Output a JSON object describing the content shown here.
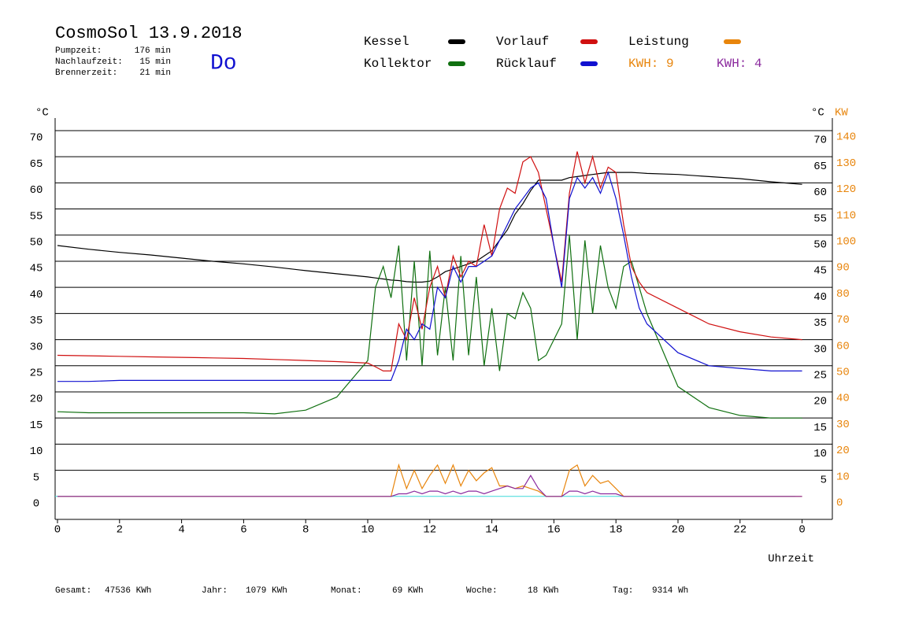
{
  "chart_data": {
    "type": "line",
    "title": "CosmoSol 13.9.2018",
    "info": [
      {
        "label": "Pumpzeit:",
        "value": "176 min"
      },
      {
        "label": "Nachlaufzeit:",
        "value": "15 min"
      },
      {
        "label": "Brennerzeit:",
        "value": "21 min"
      }
    ],
    "weekday": "Do",
    "kwh_labels": [
      {
        "text": "KWH: 9",
        "color": "#e8850c"
      },
      {
        "text": "KWH: 4",
        "color": "#8b2a9e"
      }
    ],
    "y_label": "°C",
    "y_label_right": "°C",
    "y2_label": "KW",
    "x_label": "Uhrzeit",
    "footer": [
      {
        "label": "Gesamt:",
        "value": "47536 KWh"
      },
      {
        "label": "Jahr:",
        "value": "1079 KWh"
      },
      {
        "label": "Monat:",
        "value": "69 KWh"
      },
      {
        "label": "Woche:",
        "value": "18 KWh"
      },
      {
        "label": "Tag:",
        "value": "9314 Wh"
      }
    ],
    "xlim": [
      0,
      25
    ],
    "xticks": [
      0,
      2,
      4,
      6,
      8,
      10,
      12,
      14,
      16,
      18,
      20,
      22,
      {
        "value": 24,
        "label": "0"
      }
    ],
    "ylim": [
      -4.4,
      72.4
    ],
    "yticks": [
      0,
      5,
      10,
      15,
      20,
      25,
      30,
      35,
      40,
      45,
      50,
      55,
      60,
      65,
      70
    ],
    "yticks_right": [
      5,
      10,
      15,
      20,
      25,
      30,
      35,
      40,
      45,
      50,
      55,
      60,
      65,
      70
    ],
    "y2lim": [
      -8.8,
      144.8
    ],
    "y2ticks": [
      0,
      10,
      20,
      30,
      40,
      50,
      60,
      70,
      80,
      90,
      100,
      110,
      120,
      130,
      140
    ],
    "y2_color": "#e8850c",
    "grid": true,
    "zero_line_color": "#3cd8d8",
    "x": [
      0,
      1,
      2,
      3,
      4,
      5,
      6,
      7,
      8,
      9,
      10,
      10.25,
      10.5,
      10.75,
      11,
      11.25,
      11.5,
      11.75,
      12,
      12.25,
      12.5,
      12.75,
      13,
      13.25,
      13.5,
      13.75,
      14,
      14.25,
      14.5,
      14.75,
      15,
      15.25,
      15.5,
      15.75,
      16,
      16.25,
      16.5,
      16.75,
      17,
      17.25,
      17.5,
      17.75,
      18,
      18.25,
      18.5,
      18.75,
      19,
      20,
      21,
      22,
      23,
      24
    ],
    "series": [
      {
        "name": "Kessel",
        "color": "#000000",
        "values": [
          48,
          47.3,
          46.7,
          46.2,
          45.6,
          45,
          44.5,
          43.9,
          43.2,
          42.6,
          42,
          41.8,
          41.6,
          41.4,
          41.3,
          41.1,
          41,
          41,
          41.2,
          42,
          43,
          43.5,
          44,
          44.5,
          45,
          46,
          47,
          49,
          51,
          54,
          56,
          58.5,
          60.5,
          60.5,
          60.5,
          60.5,
          61,
          61.2,
          61.4,
          61.6,
          61.8,
          62,
          62,
          62,
          62,
          61.9,
          61.8,
          61.6,
          61.2,
          60.8,
          60.2,
          59.7
        ]
      },
      {
        "name": "Kollektor",
        "color": "#107010",
        "values": [
          16.2,
          16,
          16,
          16,
          16,
          16,
          16,
          15.8,
          16.5,
          19,
          26,
          40,
          44,
          38,
          48,
          26,
          45,
          25,
          47,
          27,
          40,
          26,
          46,
          27,
          42,
          25,
          36,
          24,
          35,
          34,
          39,
          36,
          26,
          27,
          30,
          33,
          50,
          30,
          49,
          35,
          48,
          40,
          36,
          44,
          45,
          40,
          35,
          21,
          17,
          15.5,
          15,
          15
        ]
      },
      {
        "name": "Vorlauf",
        "color": "#d01010",
        "values": [
          27,
          26.9,
          26.8,
          26.7,
          26.6,
          26.5,
          26.4,
          26.2,
          26,
          25.8,
          25.5,
          24.8,
          24,
          24,
          33,
          30,
          38,
          32,
          40,
          44,
          38,
          46,
          42,
          45,
          44,
          52,
          46,
          55,
          59,
          58,
          64,
          65,
          62,
          55,
          48,
          41,
          58,
          66,
          60,
          65,
          59,
          63,
          62,
          52,
          44,
          41,
          39,
          36,
          33,
          31.5,
          30.5,
          30
        ]
      },
      {
        "name": "Rücklauf",
        "color": "#1010d0",
        "values": [
          22,
          22,
          22.2,
          22.2,
          22.2,
          22.2,
          22.2,
          22.2,
          22.2,
          22.2,
          22.2,
          22.2,
          22.2,
          22.2,
          26,
          32,
          30,
          33,
          32,
          40,
          38,
          44,
          41,
          44,
          44,
          45,
          46,
          49,
          52,
          55,
          57,
          59,
          60,
          57,
          48,
          40,
          57,
          61,
          59,
          61,
          58,
          62,
          57,
          50,
          42,
          36,
          33,
          27.5,
          25,
          24.5,
          24,
          24
        ]
      },
      {
        "name": "Leistung",
        "color": "#e8850c",
        "axis": "y2",
        "values": [
          0,
          0,
          0,
          0,
          0,
          0,
          0,
          0,
          0,
          0,
          0,
          0,
          0,
          0,
          12,
          3,
          10,
          3,
          8,
          12,
          5,
          12,
          4,
          10,
          6,
          9,
          11,
          4,
          4,
          3,
          4,
          3,
          2,
          0,
          0,
          0,
          10,
          12,
          4,
          8,
          5,
          6,
          3,
          0,
          0,
          0,
          0,
          0,
          0,
          0,
          0,
          0
        ]
      },
      {
        "color": "#8b2a9e",
        "axis": "y2",
        "values": [
          0,
          0,
          0,
          0,
          0,
          0,
          0,
          0,
          0,
          0,
          0,
          0,
          0,
          0,
          1,
          1,
          2,
          1,
          2,
          2,
          1,
          2,
          1,
          2,
          2,
          1,
          2,
          3,
          4,
          3,
          3,
          8,
          3,
          0,
          0,
          0,
          2,
          2,
          1,
          2,
          1,
          1,
          1,
          0,
          0,
          0,
          0,
          0,
          0,
          0,
          0,
          0
        ]
      }
    ]
  }
}
